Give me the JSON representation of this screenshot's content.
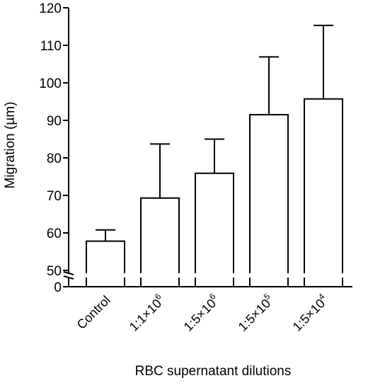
{
  "chart_data": {
    "type": "bar",
    "title": "",
    "xlabel": "RBC supernatant dilutions",
    "ylabel": "Migration (µm)",
    "ylim": [
      50,
      120
    ],
    "y_axis_break": true,
    "y_break_baseline_label": "0",
    "yticks": [
      "50",
      "60",
      "70",
      "80",
      "90",
      "100",
      "110",
      "120"
    ],
    "grid": false,
    "categories": [
      {
        "base": "Control",
        "sup": ""
      },
      {
        "base": "1:1×10",
        "sup": "6"
      },
      {
        "base": "1:5×10",
        "sup": "6"
      },
      {
        "base": "1:5×10",
        "sup": "5"
      },
      {
        "base": "1:5×10",
        "sup": "4"
      }
    ],
    "values": [
      57.8,
      69.3,
      75.9,
      91.5,
      95.7
    ],
    "error_upper": [
      60.8,
      83.7,
      85.0,
      106.9,
      115.3
    ]
  }
}
